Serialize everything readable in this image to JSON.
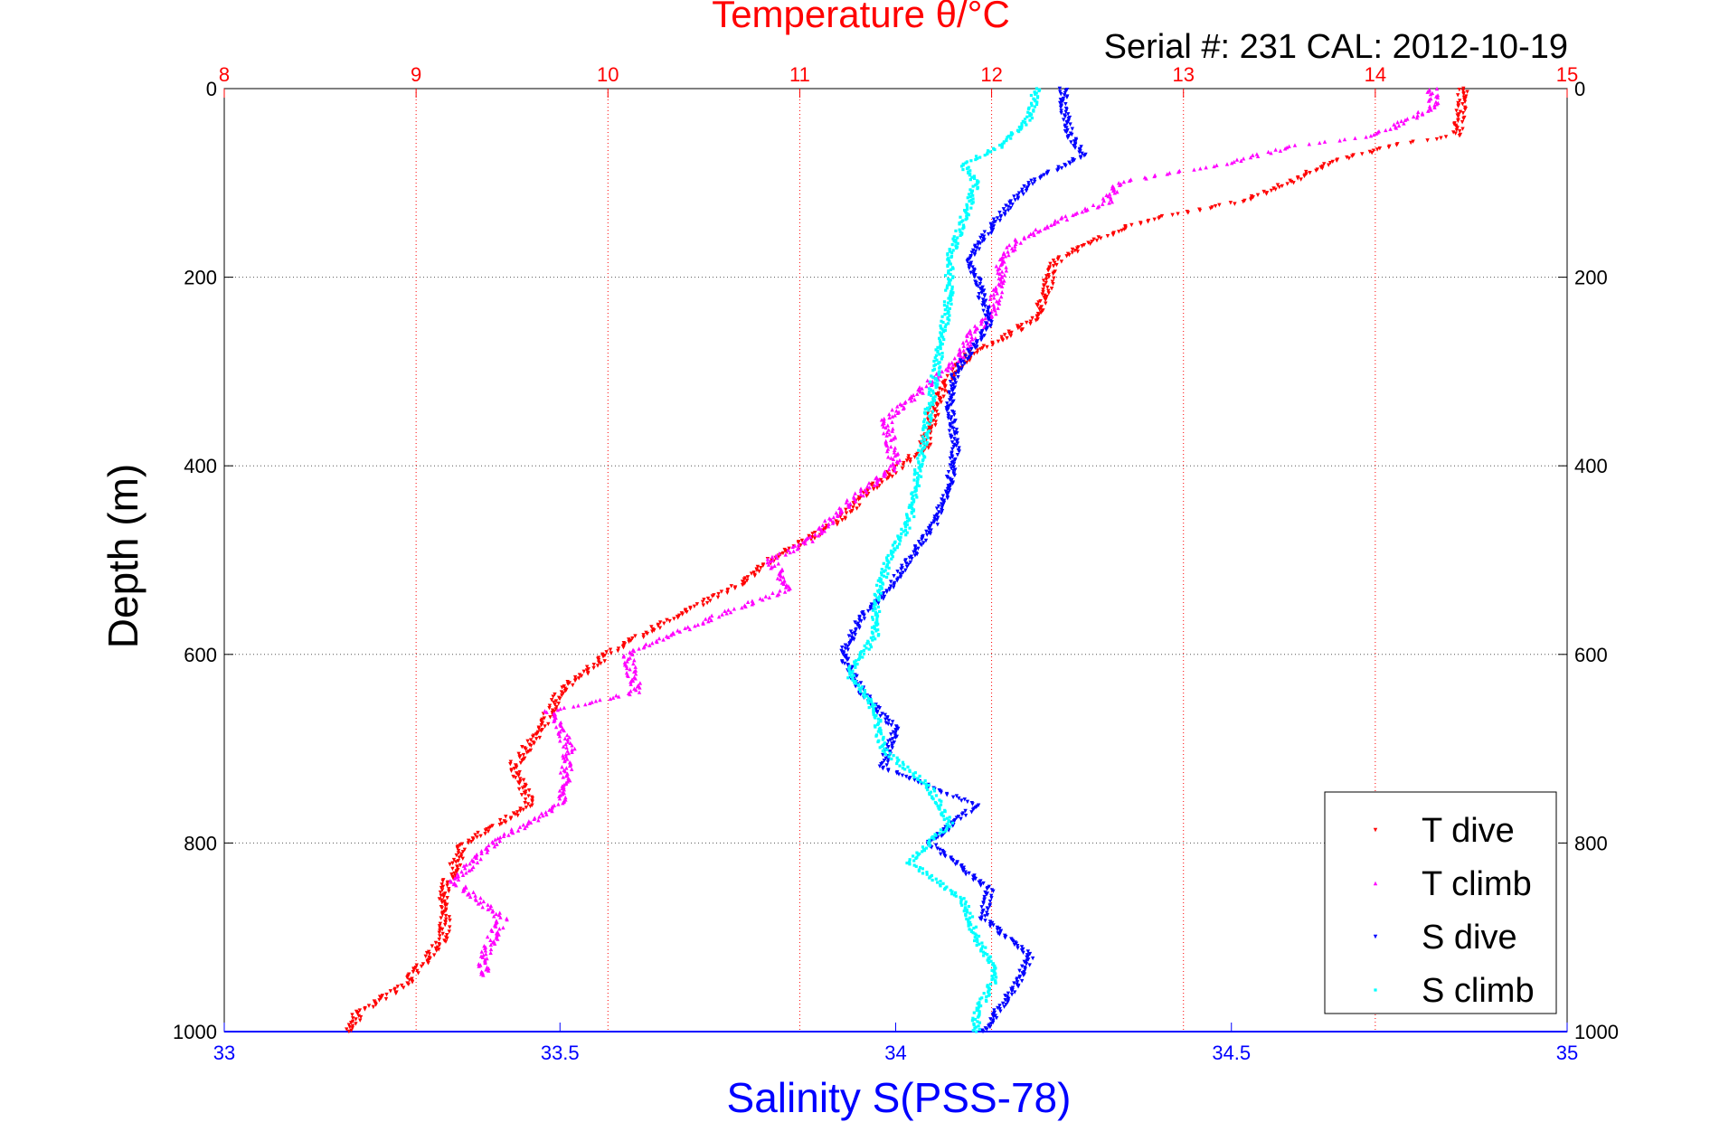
{
  "chart_data": {
    "type": "scatter",
    "title": "Temperature θ/°C",
    "subtitle": "Serial #: 231  CAL: 2012-10-19",
    "ylabel": "Depth (m)",
    "x_top_label": "Temperature θ/°C",
    "x_bottom_label": "Salinity S(PSS-78)",
    "y_ticks": [
      "0",
      "200",
      "400",
      "600",
      "800",
      "1000"
    ],
    "x_top_ticks": [
      "8",
      "9",
      "10",
      "11",
      "12",
      "13",
      "14",
      "15"
    ],
    "x_bottom_ticks": [
      "33",
      "33.5",
      "34",
      "34.5",
      "35"
    ],
    "ylim": [
      1000,
      0
    ],
    "x_top_lim": [
      8,
      15
    ],
    "x_bottom_lim": [
      33,
      35
    ],
    "grid": true,
    "legend_position": "bottom-right",
    "series": [
      {
        "name": "T dive",
        "axis": "top",
        "color": "#ff0000",
        "marker": "triangle-down",
        "depth": [
          0,
          20,
          50,
          60,
          80,
          100,
          120,
          140,
          160,
          180,
          200,
          240,
          260,
          280,
          300,
          340,
          380,
          420,
          460,
          500,
          530,
          560,
          600,
          640,
          680,
          720,
          760,
          800,
          850,
          900,
          950,
          980,
          1000
        ],
        "values": [
          14.45,
          14.45,
          14.42,
          14.1,
          13.75,
          13.55,
          13.3,
          12.8,
          12.55,
          12.35,
          12.3,
          12.25,
          12.1,
          11.9,
          11.8,
          11.7,
          11.65,
          11.4,
          11.2,
          10.85,
          10.65,
          10.35,
          10.0,
          9.75,
          9.65,
          9.5,
          9.6,
          9.25,
          9.15,
          9.15,
          8.95,
          8.7,
          8.65
        ]
      },
      {
        "name": "T climb",
        "axis": "top",
        "color": "#ff00ff",
        "marker": "triangle-up",
        "depth": [
          0,
          20,
          50,
          60,
          80,
          100,
          120,
          140,
          160,
          180,
          200,
          240,
          260,
          280,
          300,
          350,
          400,
          440,
          480,
          500,
          530,
          560,
          600,
          640,
          660,
          700,
          760,
          800,
          840,
          880,
          920,
          940
        ],
        "values": [
          14.3,
          14.3,
          14.0,
          13.6,
          13.2,
          12.65,
          12.6,
          12.35,
          12.15,
          12.05,
          12.05,
          12.0,
          11.9,
          11.85,
          11.75,
          11.45,
          11.5,
          11.25,
          11.05,
          10.85,
          10.95,
          10.55,
          10.1,
          10.15,
          9.7,
          9.8,
          9.75,
          9.4,
          9.2,
          9.45,
          9.35,
          9.35
        ]
      },
      {
        "name": "S dive",
        "axis": "bottom",
        "color": "#0000ff",
        "marker": "triangle-down",
        "depth": [
          0,
          20,
          50,
          70,
          100,
          140,
          180,
          200,
          250,
          300,
          340,
          380,
          420,
          460,
          500,
          540,
          560,
          600,
          640,
          680,
          720,
          760,
          800,
          850,
          880,
          920,
          950,
          1000
        ],
        "values": [
          34.25,
          34.25,
          34.26,
          34.28,
          34.2,
          34.15,
          34.11,
          34.12,
          34.14,
          34.09,
          34.08,
          34.09,
          34.08,
          34.06,
          34.02,
          33.98,
          33.95,
          33.92,
          33.95,
          34.0,
          33.98,
          34.12,
          34.05,
          34.14,
          34.13,
          34.2,
          34.18,
          34.13
        ]
      },
      {
        "name": "S climb",
        "axis": "bottom",
        "color": "#00ffff",
        "marker": "dot",
        "depth": [
          0,
          30,
          60,
          80,
          100,
          140,
          180,
          220,
          260,
          300,
          340,
          380,
          420,
          460,
          500,
          540,
          580,
          620,
          660,
          700,
          740,
          780,
          820,
          860,
          900,
          940,
          980,
          1000
        ],
        "values": [
          34.21,
          34.2,
          34.16,
          34.1,
          34.12,
          34.1,
          34.08,
          34.08,
          34.07,
          34.06,
          34.05,
          34.04,
          34.03,
          34.02,
          33.99,
          33.97,
          33.97,
          33.93,
          33.97,
          33.98,
          34.05,
          34.08,
          34.02,
          34.1,
          34.12,
          34.15,
          34.12,
          34.12
        ]
      }
    ]
  }
}
